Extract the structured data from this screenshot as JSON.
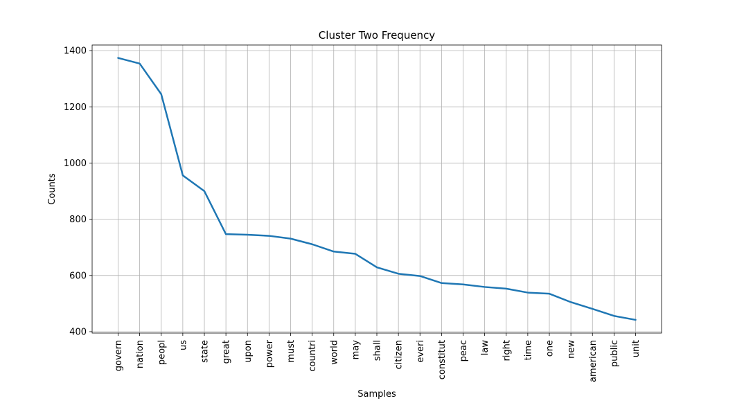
{
  "chart_data": {
    "type": "line",
    "title": "Cluster Two  Frequency",
    "xlabel": "Samples",
    "ylabel": "Counts",
    "categories": [
      "govern",
      "nation",
      "peopl",
      "us",
      "state",
      "great",
      "upon",
      "power",
      "must",
      "countri",
      "world",
      "may",
      "shall",
      "citizen",
      "everi",
      "constitut",
      "peac",
      "law",
      "right",
      "time",
      "one",
      "new",
      "american",
      "public",
      "unit"
    ],
    "values": [
      1374,
      1354,
      1245,
      956,
      900,
      747,
      745,
      741,
      731,
      711,
      685,
      677,
      629,
      606,
      598,
      573,
      568,
      559,
      553,
      539,
      535,
      505,
      481,
      456,
      442
    ],
    "yticks": [
      400,
      600,
      800,
      1000,
      1200,
      1400
    ],
    "ylim": [
      395,
      1420
    ],
    "grid": true,
    "line_color": "#1f77b4",
    "grid_color": "#b0b0b0"
  }
}
